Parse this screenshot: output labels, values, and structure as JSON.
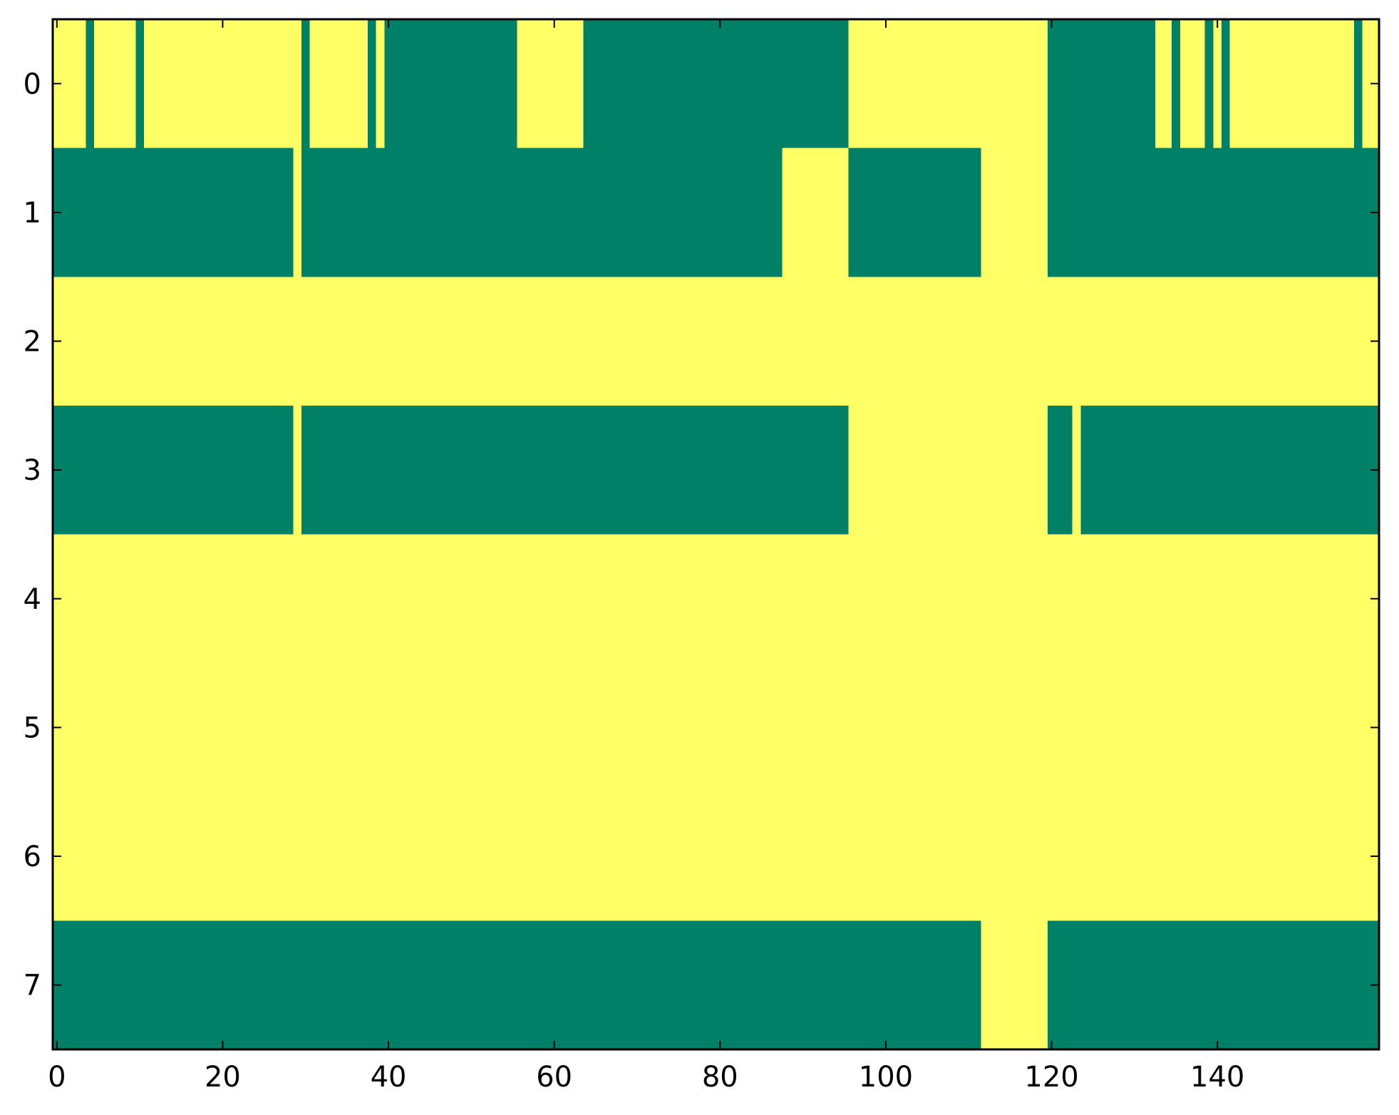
{
  "chart_data": {
    "type": "heatmap",
    "title": "",
    "xlabel": "",
    "ylabel": "",
    "xlim": [
      -0.5,
      159.5
    ],
    "ylim": [
      7.5,
      -0.5
    ],
    "n_cols": 160,
    "n_rows": 8,
    "grid": false,
    "legend": "none",
    "colors": {
      "0": "#ffff66",
      "1": "#008066"
    },
    "x_ticks": [
      {
        "value": 0,
        "label": "0"
      },
      {
        "value": 20,
        "label": "20"
      },
      {
        "value": 40,
        "label": "40"
      },
      {
        "value": 60,
        "label": "60"
      },
      {
        "value": 80,
        "label": "80"
      },
      {
        "value": 100,
        "label": "100"
      },
      {
        "value": 120,
        "label": "120"
      },
      {
        "value": 140,
        "label": "140"
      }
    ],
    "y_ticks": [
      {
        "value": 0,
        "label": "0"
      },
      {
        "value": 1,
        "label": "1"
      },
      {
        "value": 2,
        "label": "2"
      },
      {
        "value": 3,
        "label": "3"
      },
      {
        "value": 4,
        "label": "4"
      },
      {
        "value": 5,
        "label": "5"
      },
      {
        "value": 6,
        "label": "6"
      },
      {
        "value": 7,
        "label": "7"
      }
    ],
    "rows": [
      {
        "row": 0,
        "value1_runs": [
          [
            4,
            4
          ],
          [
            10,
            10
          ],
          [
            30,
            30
          ],
          [
            38,
            38
          ],
          [
            40,
            55
          ],
          [
            64,
            95
          ],
          [
            120,
            132
          ],
          [
            135,
            135
          ],
          [
            139,
            139
          ],
          [
            141,
            141
          ],
          [
            157,
            157
          ]
        ]
      },
      {
        "row": 1,
        "value1_runs": [
          [
            0,
            28
          ],
          [
            30,
            87
          ],
          [
            96,
            111
          ],
          [
            120,
            159
          ]
        ]
      },
      {
        "row": 2,
        "value1_runs": []
      },
      {
        "row": 3,
        "value1_runs": [
          [
            0,
            28
          ],
          [
            30,
            95
          ],
          [
            120,
            122
          ],
          [
            124,
            159
          ]
        ]
      },
      {
        "row": 4,
        "value1_runs": []
      },
      {
        "row": 5,
        "value1_runs": []
      },
      {
        "row": 6,
        "value1_runs": []
      },
      {
        "row": 7,
        "value1_runs": [
          [
            0,
            111
          ],
          [
            120,
            159
          ]
        ]
      }
    ]
  }
}
